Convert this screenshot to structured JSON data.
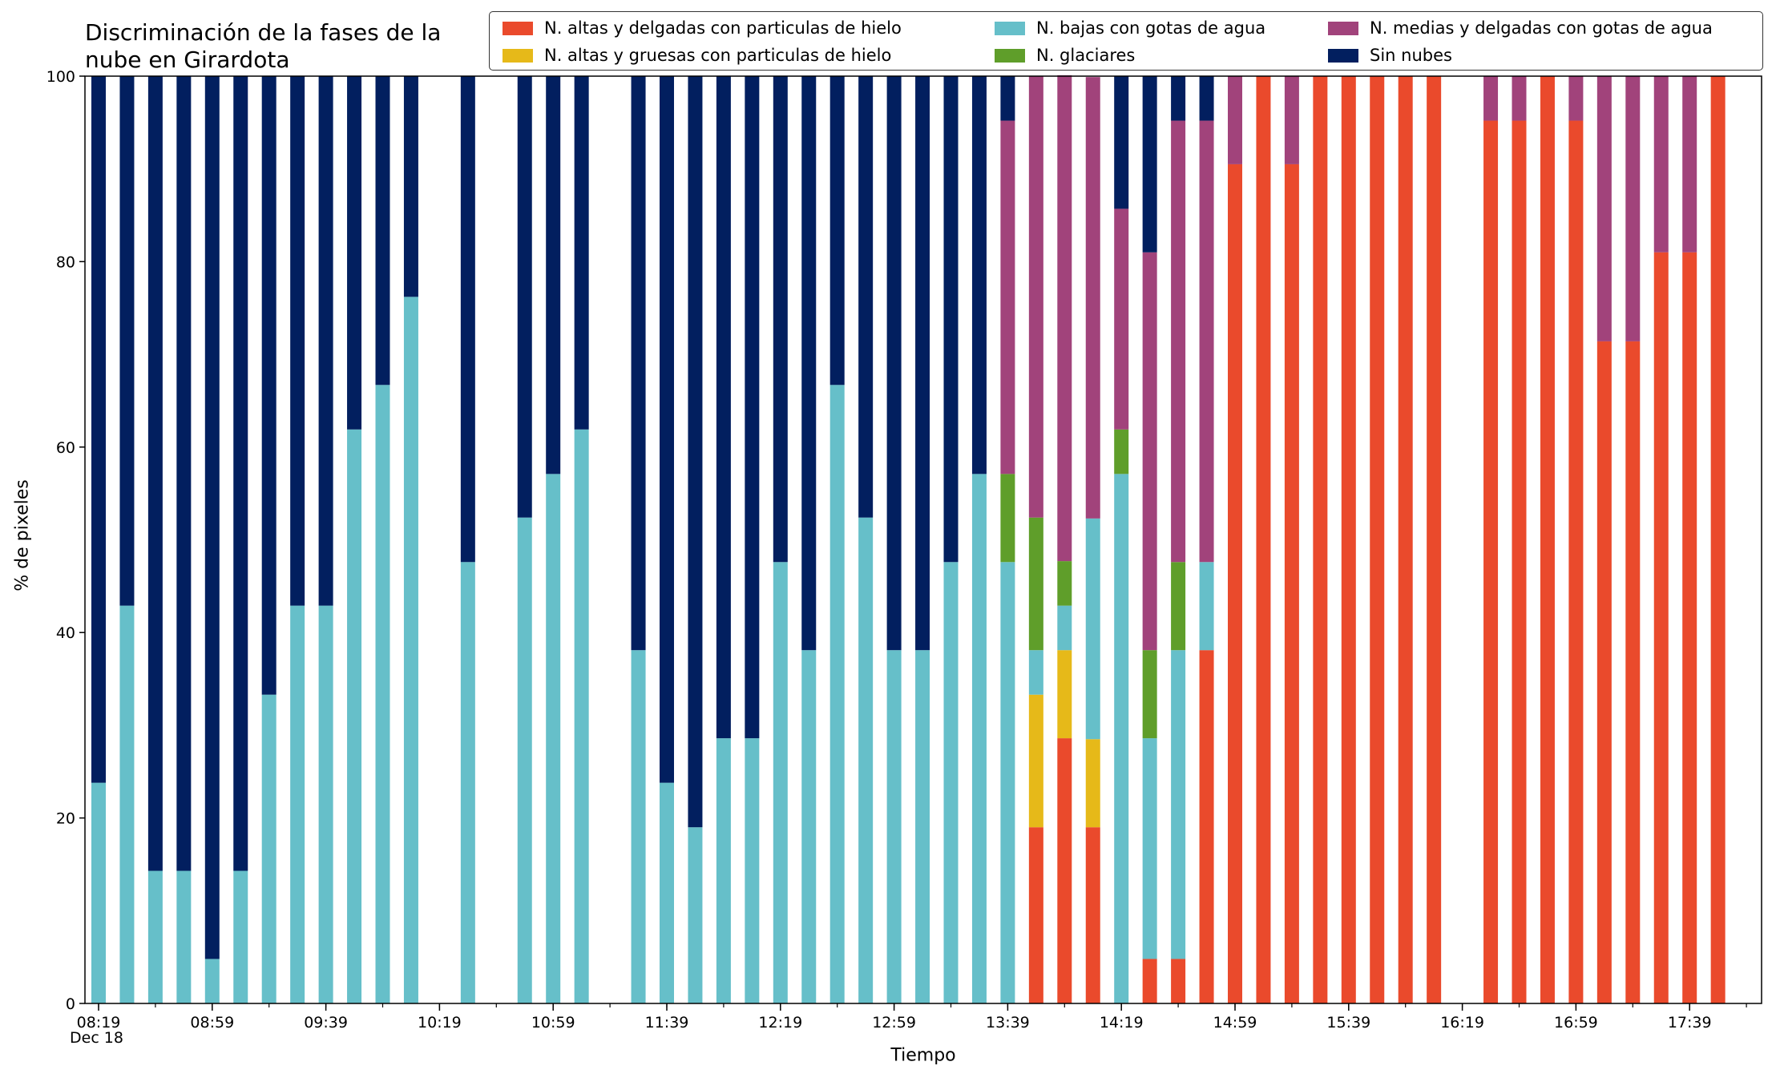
{
  "title": "Discriminación de la fases de la\nnube en Girardota",
  "ylabel": "% de pixeles",
  "xlabel": "Tiempo",
  "date_label": "Dec 18",
  "legend": [
    {
      "name": "N. altas y delgadas con particulas de hielo",
      "color": "#ea4a2c"
    },
    {
      "name": "N. altas y gruesas con particulas de hielo",
      "color": "#e6b919"
    },
    {
      "name": "N. bajas con gotas de agua",
      "color": "#66bfc9"
    },
    {
      "name": "N. glaciares",
      "color": "#5f9e2a"
    },
    {
      "name": "N. medias y delgadas con gotas de agua",
      "color": "#a1437b"
    },
    {
      "name": "Sin nubes",
      "color": "#021f5f"
    }
  ],
  "chart_data": {
    "type": "bar",
    "stacked": true,
    "x_start": "08:19",
    "x_step_minutes": 10,
    "x_end": "17:49",
    "xticks": [
      "08:19",
      "08:59",
      "09:39",
      "10:19",
      "10:59",
      "11:39",
      "12:19",
      "12:59",
      "13:39",
      "14:19",
      "14:59",
      "15:39",
      "16:19",
      "16:59",
      "17:39"
    ],
    "yticks": [
      0,
      20,
      40,
      60,
      80,
      100
    ],
    "ylim": [
      0,
      100
    ],
    "series_order": [
      "N. altas y delgadas con particulas de hielo",
      "N. altas y gruesas con particulas de hielo",
      "N. bajas con gotas de agua",
      "N. glaciares",
      "N. medias y delgadas con gotas de agua",
      "Sin nubes"
    ],
    "bars": [
      {
        "time": "08:19",
        "values": [
          0,
          0,
          23.8,
          0,
          0,
          76.2
        ]
      },
      {
        "time": "08:29",
        "values": [
          0,
          0,
          42.9,
          0,
          0,
          57.1
        ]
      },
      {
        "time": "08:39",
        "values": [
          0,
          0,
          14.3,
          0,
          0,
          85.7
        ]
      },
      {
        "time": "08:49",
        "values": [
          0,
          0,
          14.3,
          0,
          0,
          85.7
        ]
      },
      {
        "time": "08:59",
        "values": [
          0,
          0,
          4.8,
          0,
          0,
          95.2
        ]
      },
      {
        "time": "09:09",
        "values": [
          0,
          0,
          14.3,
          0,
          0,
          85.7
        ]
      },
      {
        "time": "09:19",
        "values": [
          0,
          0,
          33.3,
          0,
          0,
          66.7
        ]
      },
      {
        "time": "09:29",
        "values": [
          0,
          0,
          42.9,
          0,
          0,
          57.1
        ]
      },
      {
        "time": "09:39",
        "values": [
          0,
          0,
          42.9,
          0,
          0,
          57.1
        ]
      },
      {
        "time": "09:49",
        "values": [
          0,
          0,
          61.9,
          0,
          0,
          38.1
        ]
      },
      {
        "time": "09:59",
        "values": [
          0,
          0,
          66.7,
          0,
          0,
          33.3
        ]
      },
      {
        "time": "10:09",
        "values": [
          0,
          0,
          76.2,
          0,
          0,
          23.8
        ]
      },
      {
        "time": "10:29",
        "values": [
          0,
          0,
          47.6,
          0,
          0,
          52.4
        ]
      },
      {
        "time": "10:49",
        "values": [
          0,
          0,
          52.4,
          0,
          0,
          47.6
        ]
      },
      {
        "time": "10:59",
        "values": [
          0,
          0,
          57.1,
          0,
          0,
          42.9
        ]
      },
      {
        "time": "11:09",
        "values": [
          0,
          0,
          61.9,
          0,
          0,
          38.1
        ]
      },
      {
        "time": "11:29",
        "values": [
          0,
          0,
          38.1,
          0,
          0,
          61.9
        ]
      },
      {
        "time": "11:39",
        "values": [
          0,
          0,
          23.8,
          0,
          0,
          76.2
        ]
      },
      {
        "time": "11:49",
        "values": [
          0,
          0,
          19.0,
          0,
          0,
          81.0
        ]
      },
      {
        "time": "11:59",
        "values": [
          0,
          0,
          28.6,
          0,
          0,
          71.4
        ]
      },
      {
        "time": "12:09",
        "values": [
          0,
          0,
          28.6,
          0,
          0,
          71.4
        ]
      },
      {
        "time": "12:19",
        "values": [
          0,
          0,
          47.6,
          0,
          0,
          52.4
        ]
      },
      {
        "time": "12:29",
        "values": [
          0,
          0,
          38.1,
          0,
          0,
          61.9
        ]
      },
      {
        "time": "12:39",
        "values": [
          0,
          0,
          66.7,
          0,
          0,
          33.3
        ]
      },
      {
        "time": "12:49",
        "values": [
          0,
          0,
          52.4,
          0,
          0,
          47.6
        ]
      },
      {
        "time": "12:59",
        "values": [
          0,
          0,
          38.1,
          0,
          0,
          61.9
        ]
      },
      {
        "time": "13:09",
        "values": [
          0,
          0,
          38.1,
          0,
          0,
          61.9
        ]
      },
      {
        "time": "13:19",
        "values": [
          0,
          0,
          47.6,
          0,
          0,
          52.4
        ]
      },
      {
        "time": "13:29",
        "values": [
          0,
          0,
          57.1,
          0,
          0,
          42.9
        ]
      },
      {
        "time": "13:39",
        "values": [
          0,
          0,
          47.6,
          9.5,
          38.1,
          4.8
        ]
      },
      {
        "time": "13:49",
        "values": [
          19.0,
          14.3,
          4.8,
          14.3,
          47.6,
          0
        ]
      },
      {
        "time": "13:59",
        "values": [
          28.6,
          9.5,
          4.8,
          4.8,
          52.4,
          0
        ]
      },
      {
        "time": "14:09",
        "values": [
          19.0,
          9.5,
          23.8,
          0,
          47.6,
          0
        ]
      },
      {
        "time": "14:19",
        "values": [
          0,
          0,
          57.1,
          4.8,
          23.8,
          14.3
        ]
      },
      {
        "time": "14:29",
        "values": [
          4.8,
          0,
          23.8,
          9.5,
          42.9,
          19.0
        ]
      },
      {
        "time": "14:39",
        "values": [
          4.8,
          0,
          33.3,
          9.5,
          47.6,
          4.8
        ]
      },
      {
        "time": "14:49",
        "values": [
          38.1,
          0,
          9.5,
          0,
          47.6,
          4.8
        ]
      },
      {
        "time": "14:59",
        "values": [
          90.5,
          0,
          0,
          0,
          9.5,
          0
        ]
      },
      {
        "time": "15:09",
        "values": [
          100,
          0,
          0,
          0,
          0,
          0
        ]
      },
      {
        "time": "15:19",
        "values": [
          90.5,
          0,
          0,
          0,
          9.5,
          0
        ]
      },
      {
        "time": "15:29",
        "values": [
          100,
          0,
          0,
          0,
          0,
          0
        ]
      },
      {
        "time": "15:39",
        "values": [
          100,
          0,
          0,
          0,
          0,
          0
        ]
      },
      {
        "time": "15:49",
        "values": [
          100,
          0,
          0,
          0,
          0,
          0
        ]
      },
      {
        "time": "15:59",
        "values": [
          100,
          0,
          0,
          0,
          0,
          0
        ]
      },
      {
        "time": "16:09",
        "values": [
          100,
          0,
          0,
          0,
          0,
          0
        ]
      },
      {
        "time": "16:29",
        "values": [
          95.2,
          0,
          0,
          0,
          4.8,
          0
        ]
      },
      {
        "time": "16:39",
        "values": [
          95.2,
          0,
          0,
          0,
          4.8,
          0
        ]
      },
      {
        "time": "16:49",
        "values": [
          100,
          0,
          0,
          0,
          0,
          0
        ]
      },
      {
        "time": "16:59",
        "values": [
          95.2,
          0,
          0,
          0,
          4.8,
          0
        ]
      },
      {
        "time": "17:09",
        "values": [
          71.4,
          0,
          0,
          0,
          28.6,
          0
        ]
      },
      {
        "time": "17:19",
        "values": [
          71.4,
          0,
          0,
          0,
          28.6,
          0
        ]
      },
      {
        "time": "17:29",
        "values": [
          81.0,
          0,
          0,
          0,
          19.0,
          0
        ]
      },
      {
        "time": "17:39",
        "values": [
          81.0,
          0,
          0,
          0,
          19.0,
          0
        ]
      },
      {
        "time": "17:49",
        "values": [
          100,
          0,
          0,
          0,
          0,
          0
        ]
      }
    ]
  }
}
